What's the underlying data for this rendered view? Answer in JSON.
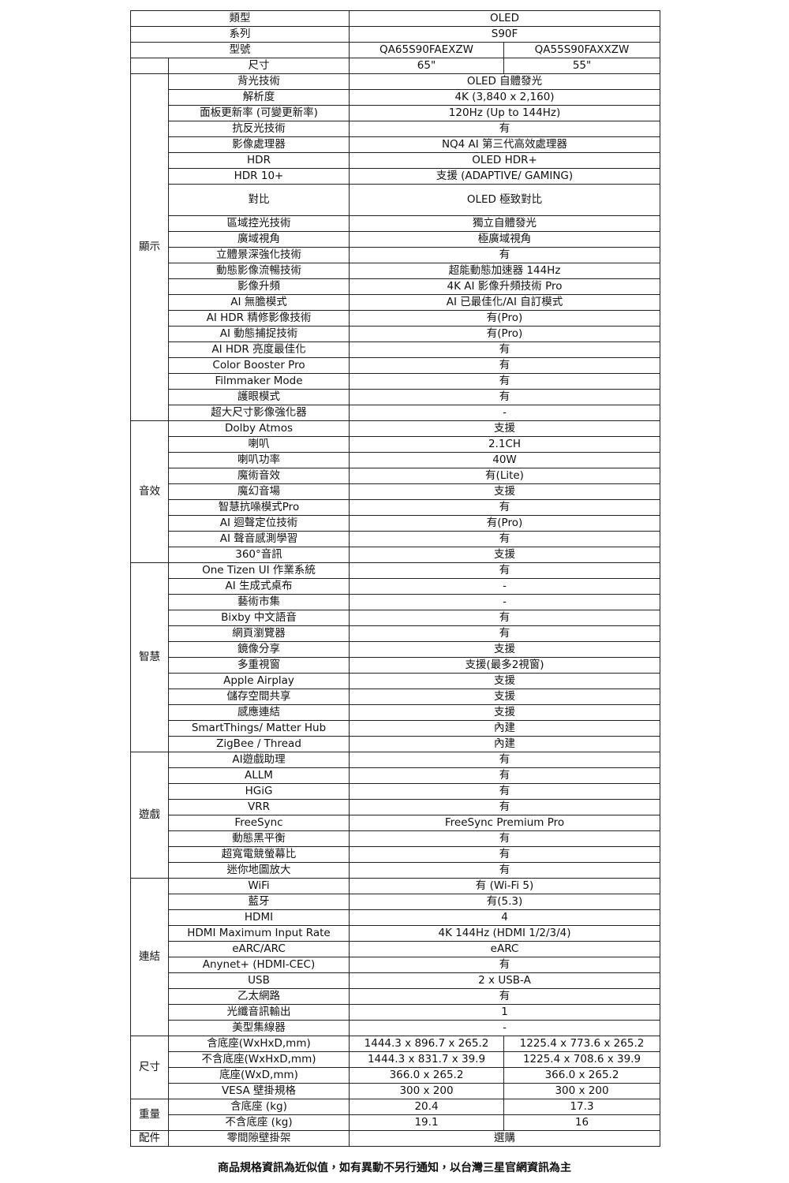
{
  "model_rows": [
    {
      "label": "類型",
      "values": [
        "OLED"
      ]
    },
    {
      "label": "系列",
      "values": [
        "S90F"
      ]
    },
    {
      "label": "型號",
      "values": [
        "QA65S90FAEXZW",
        "QA55S90FAXXZW"
      ]
    }
  ],
  "size_row": {
    "label": "尺寸",
    "values": [
      "65\"",
      "55\""
    ]
  },
  "sections": [
    {
      "name": "顯示",
      "rows": [
        {
          "label": "背光技術",
          "values": [
            "OLED 自體發光"
          ]
        },
        {
          "label": "解析度",
          "values": [
            "4K (3,840 x 2,160)"
          ]
        },
        {
          "label": "面板更新率 (可變更新率)",
          "values": [
            "120Hz (Up to 144Hz)"
          ]
        },
        {
          "label": "抗反光技術",
          "values": [
            "有"
          ]
        },
        {
          "label": "影像處理器",
          "values": [
            "NQ4 AI 第三代高效處理器"
          ]
        },
        {
          "label": "HDR",
          "values": [
            "OLED HDR+"
          ]
        },
        {
          "label": "HDR 10+",
          "values": [
            "支援 (ADAPTIVE/ GAMING)"
          ]
        },
        {
          "label": "對比",
          "values": [
            "OLED 極致對比"
          ]
        },
        {
          "label": "區域控光技術",
          "values": [
            "獨立自體發光"
          ]
        },
        {
          "label": "廣域視角",
          "values": [
            "極廣域視角"
          ]
        },
        {
          "label": "立體景深強化技術",
          "values": [
            "有"
          ]
        },
        {
          "label": "動態影像流暢技術",
          "values": [
            "超能動態加速器 144Hz"
          ]
        },
        {
          "label": "影像升頻",
          "values": [
            "4K AI 影像升頻技術 Pro"
          ]
        },
        {
          "label": "AI 無膽模式",
          "values": [
            "AI 已最佳化/AI 自訂模式"
          ]
        },
        {
          "label": "AI HDR 精修影像技術",
          "values": [
            "有(Pro)"
          ]
        },
        {
          "label": "AI 動態捕捉技術",
          "values": [
            "有(Pro)"
          ]
        },
        {
          "label": "AI HDR 亮度最佳化",
          "values": [
            "有"
          ]
        },
        {
          "label": "Color Booster Pro",
          "values": [
            "有"
          ]
        },
        {
          "label": "Filmmaker Mode",
          "values": [
            "有"
          ]
        },
        {
          "label": "護眼模式",
          "values": [
            "有"
          ]
        },
        {
          "label": "超大尺寸影像強化器",
          "values": [
            "-"
          ]
        }
      ]
    },
    {
      "name": "音效",
      "rows": [
        {
          "label": "Dolby Atmos",
          "values": [
            "支援"
          ]
        },
        {
          "label": "喇叭",
          "values": [
            "2.1CH"
          ]
        },
        {
          "label": "喇叭功率",
          "values": [
            "40W"
          ]
        },
        {
          "label": "魔術音效",
          "values": [
            "有(Lite)"
          ]
        },
        {
          "label": "魔幻音場",
          "values": [
            "支援"
          ]
        },
        {
          "label": "智慧抗噪模式Pro",
          "values": [
            "有"
          ]
        },
        {
          "label": "AI 迴聲定位技術",
          "values": [
            "有(Pro)"
          ]
        },
        {
          "label": "AI 聲音感測學習",
          "values": [
            "有"
          ]
        },
        {
          "label": "360°音訊",
          "values": [
            "支援"
          ]
        }
      ]
    },
    {
      "name": "智慧",
      "rows": [
        {
          "label": "One Tizen UI 作業系統",
          "values": [
            "有"
          ]
        },
        {
          "label": "AI 生成式桌布",
          "values": [
            "-"
          ]
        },
        {
          "label": "藝術市集",
          "values": [
            "-"
          ]
        },
        {
          "label": "Bixby 中文語音",
          "values": [
            "有"
          ]
        },
        {
          "label": "網頁瀏覽器",
          "values": [
            "有"
          ]
        },
        {
          "label": "鏡像分享",
          "values": [
            "支援"
          ]
        },
        {
          "label": "多重視窗",
          "values": [
            "支援(最多2視窗)"
          ]
        },
        {
          "label": "Apple Airplay",
          "values": [
            "支援"
          ]
        },
        {
          "label": "儲存空間共享",
          "values": [
            "支援"
          ]
        },
        {
          "label": "感應連結",
          "values": [
            "支援"
          ]
        },
        {
          "label": "SmartThings/ Matter Hub",
          "values": [
            "內建"
          ]
        },
        {
          "label": "ZigBee / Thread",
          "values": [
            "內建"
          ]
        }
      ]
    },
    {
      "name": "遊戲",
      "rows": [
        {
          "label": "AI遊戲助理",
          "values": [
            "有"
          ]
        },
        {
          "label": "ALLM",
          "values": [
            "有"
          ]
        },
        {
          "label": "HGiG",
          "values": [
            "有"
          ]
        },
        {
          "label": "VRR",
          "values": [
            "有"
          ]
        },
        {
          "label": "FreeSync",
          "values": [
            "FreeSync Premium Pro"
          ]
        },
        {
          "label": "動態黑平衡",
          "values": [
            "有"
          ]
        },
        {
          "label": "超寬電競螢幕比",
          "values": [
            "有"
          ]
        },
        {
          "label": "迷你地圖放大",
          "values": [
            "有"
          ]
        }
      ]
    },
    {
      "name": "連結",
      "rows": [
        {
          "label": "WiFi",
          "values": [
            "有 (Wi-Fi 5)"
          ]
        },
        {
          "label": "藍牙",
          "values": [
            "有(5.3)"
          ]
        },
        {
          "label": "HDMI",
          "values": [
            "4"
          ]
        },
        {
          "label": "HDMI Maximum Input Rate",
          "values": [
            "4K 144Hz (HDMI 1/2/3/4)"
          ]
        },
        {
          "label": "eARC/ARC",
          "values": [
            "eARC"
          ]
        },
        {
          "label": "Anynet+ (HDMI-CEC)",
          "values": [
            "有"
          ]
        },
        {
          "label": "USB",
          "values": [
            "2 x USB-A"
          ]
        },
        {
          "label": "乙太網路",
          "values": [
            "有"
          ]
        },
        {
          "label": "光纖音訊輸出",
          "values": [
            "1"
          ]
        },
        {
          "label": "美型集線器",
          "values": [
            "-"
          ]
        }
      ]
    },
    {
      "name": "尺寸",
      "rows": [
        {
          "label": "含底座(WxHxD,mm)",
          "values": [
            "1444.3 x 896.7 x 265.2",
            "1225.4 x 773.6 x 265.2"
          ]
        },
        {
          "label": "不含底座(WxHxD,mm)",
          "values": [
            "1444.3 x 831.7 x 39.9",
            "1225.4 x 708.6 x 39.9"
          ]
        },
        {
          "label": "底座(WxD,mm)",
          "values": [
            "366.0 x 265.2",
            "366.0 x 265.2"
          ]
        },
        {
          "label": "VESA 壁掛規格",
          "values": [
            "300 x 200",
            "300 x 200"
          ]
        }
      ]
    },
    {
      "name": "重量",
      "rows": [
        {
          "label": "含底座 (kg)",
          "values": [
            "20.4",
            "17.3"
          ]
        },
        {
          "label": "不含底座 (kg)",
          "values": [
            "19.1",
            "16"
          ]
        }
      ]
    },
    {
      "name": "配件",
      "rows": [
        {
          "label": "零間隙壁掛架",
          "values": [
            "選購"
          ]
        }
      ]
    }
  ],
  "note": "商品規格資訊為近似值，如有異動不另行通知，以台灣三星官網資訊為主"
}
